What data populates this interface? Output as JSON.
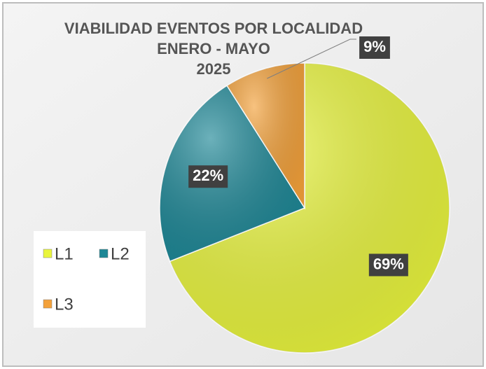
{
  "chart_data": {
    "type": "pie",
    "title": [
      "VIABILIDAD EVENTOS POR LOCALIDAD",
      "ENERO - MAYO",
      "2025"
    ],
    "categories": [
      "L1",
      "L2",
      "L3"
    ],
    "values": [
      69,
      22,
      9
    ],
    "value_labels": [
      "69%",
      "22%",
      "9%"
    ],
    "colors": [
      "#e9f53c",
      "#1d8796",
      "#f3a13a"
    ],
    "legend": "left"
  }
}
